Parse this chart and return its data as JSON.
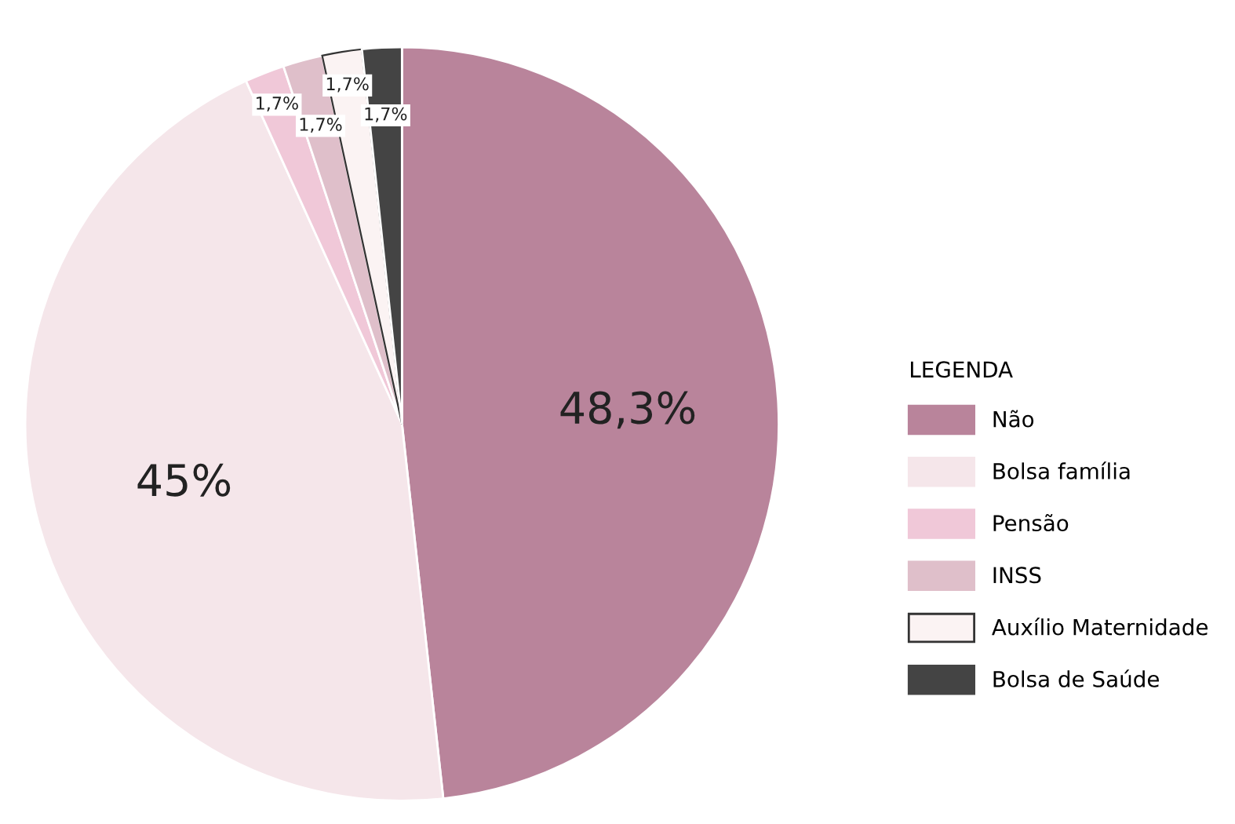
{
  "chart_data": {
    "type": "pie",
    "legend_title": "LEGENDA",
    "categories": [
      "Não",
      "Bolsa família",
      "Pensão",
      "INSS",
      "Auxílio Maternidade",
      "Bolsa de Saúde"
    ],
    "values": [
      48.3,
      45,
      1.7,
      1.7,
      1.7,
      1.7
    ],
    "value_labels": [
      "48,3%",
      "45%",
      "1,7%",
      "1,7%",
      "1,7%",
      "1,7%"
    ],
    "colors": [
      "#b9849b",
      "#f5e6ea",
      "#f0c8d8",
      "#dfbfca",
      "#fbf3f3",
      "#444444"
    ],
    "legend": "right"
  }
}
